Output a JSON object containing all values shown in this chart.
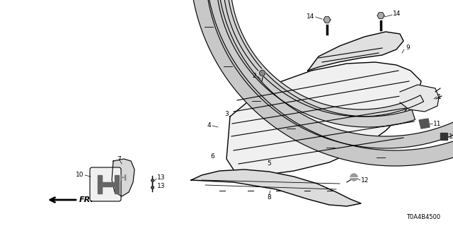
{
  "background_color": "#ffffff",
  "figure_width": 6.4,
  "figure_height": 3.2,
  "dpi": 100,
  "code_label_text": "T0A4B4500",
  "text_color": "#000000",
  "line_color": "#000000"
}
